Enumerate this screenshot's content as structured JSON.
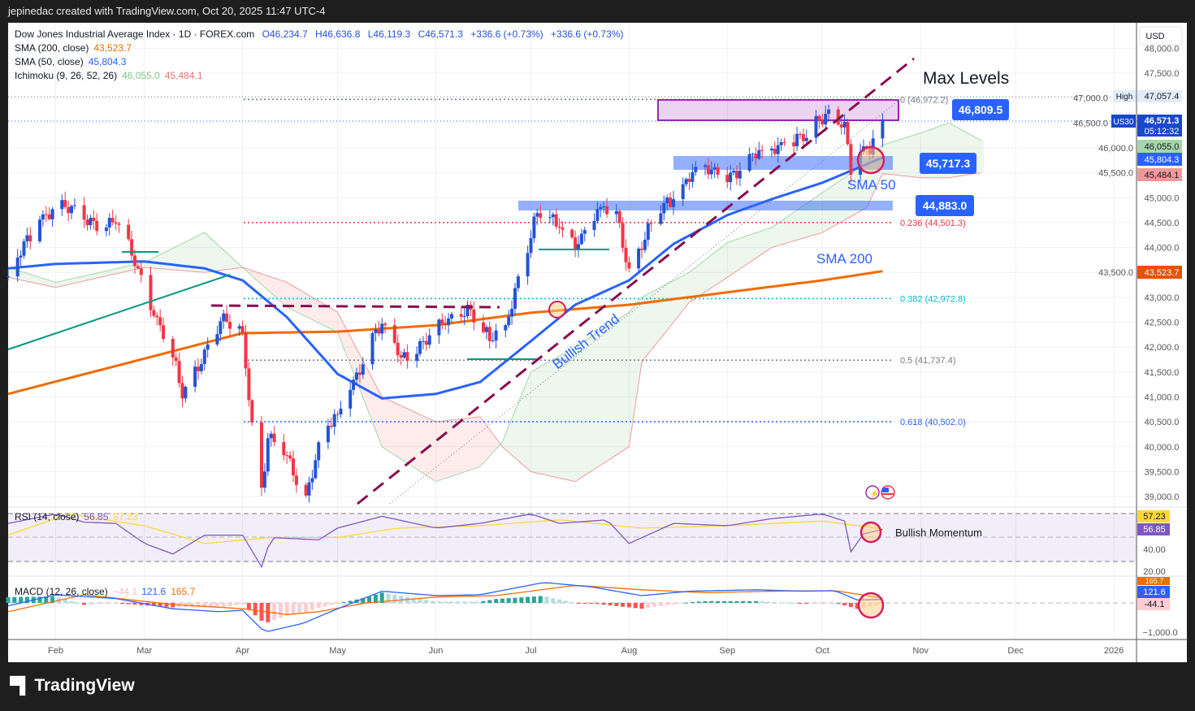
{
  "header": {
    "attribution": "jepinedac created with TradingView.com, Oct 20, 2025 11:47 UTC-4"
  },
  "legend": {
    "symbol": "Dow Jones Industrial Average Index · 1D · FOREX.com",
    "open": "O46,234.7",
    "high": "H46,636.8",
    "low": "L46,119.3",
    "close": "C46,571.3",
    "change": "+336.6 (+0.73%)",
    "change2": "+336.6 (+0.73%)",
    "sma200_label": "SMA (200, close)",
    "sma200_value": "43,523.7",
    "sma50_label": "SMA (50, close)",
    "sma50_value": "45,804.3",
    "ichimoku_label": "Ichimoku (9, 26, 52, 26)",
    "ichimoku_a": "46,055.0",
    "ichimoku_b": "45,484.1"
  },
  "price_axis": {
    "currency": "USD",
    "ticks": [
      "48,000.0",
      "47,500.0",
      "47,000.0",
      "46,500.0",
      "46,000.0",
      "45,500.0",
      "45,000.0",
      "44,500.0",
      "44,000.0",
      "43,500.0",
      "43,000.0",
      "42,500.0",
      "42,000.0",
      "41,500.0",
      "41,000.0",
      "40,500.0",
      "40,000.0",
      "39,500.0",
      "39,000.0"
    ],
    "high_label": "High",
    "high_value": "47,057.4",
    "symbol_tag": "US30",
    "last_price": "46,571.3",
    "countdown": "05:12:32",
    "ichimoku_a_tag": "46,055.0",
    "sma50_tag": "45,804.3",
    "ichimoku_b_tag": "45,484.1",
    "sma200_tag": "43,523.7"
  },
  "rsi_axis": {
    "rsi_ma_tag": "57.23",
    "rsi_tag": "56.85",
    "ticks": [
      "40.00",
      "20.00"
    ]
  },
  "macd_axis": {
    "signal_tag": "165.7",
    "macd_tag": "121.6",
    "hist_tag": "-44.1",
    "ticks": [
      "−1,000.0"
    ]
  },
  "time_axis": {
    "labels": [
      "Feb",
      "Mar",
      "Apr",
      "May",
      "Jun",
      "Jul",
      "Aug",
      "Sep",
      "Oct",
      "Nov",
      "Dec",
      "2026"
    ]
  },
  "rsi_legend": {
    "label": "RSI (14, close)",
    "rsi": "56.85",
    "ma": "57.23"
  },
  "macd_legend": {
    "label": "MACD (12, 26, close)",
    "hist": "−44.1",
    "macd": "121.6",
    "signal": "165.7"
  },
  "annotations": {
    "max_levels": "Max Levels",
    "box_top_price": "46,809.5",
    "zone_1_price": "45,717.3",
    "zone_2_price": "44,883.0",
    "sma50_text": "SMA 50",
    "sma200_text": "SMA 200",
    "trend_text": "Bullish Trend",
    "momentum_text": "Bullish Momentum"
  },
  "fibonacci": [
    {
      "label": "0 (46,972.2)",
      "price": 46972.2,
      "color": "#787b86"
    },
    {
      "label": "0.236 (44,501.3)",
      "price": 44501.3,
      "color": "#f23645"
    },
    {
      "label": "0.382 (42,972.8)",
      "price": 42972.8,
      "color": "#00bcd4"
    },
    {
      "label": "0.5 (41,737.4)",
      "price": 41737.4,
      "color": "#787b86"
    },
    {
      "label": "0.618 (40,502.0)",
      "price": 40502.0,
      "color": "#2962ff"
    }
  ],
  "brand": {
    "name": "TradingView"
  },
  "colors": {
    "up": "#2453d6",
    "down": "#f23645",
    "sma50": "#2962ff",
    "sma200": "#ef6c00",
    "cloud_green": "#a5d6a7",
    "cloud_red": "#ef9a9a",
    "rsi": "#7e57c2",
    "rsi_ma": "#fdd835",
    "annotation": "#880e4f"
  },
  "chart_data": {
    "type": "candlestick",
    "title": "Dow Jones Industrial Average Index · 1D",
    "ylabel": "USD",
    "ylim": [
      38800,
      48200
    ],
    "close_anchors": [
      [
        "2025-01-17",
        43420
      ],
      [
        "2025-01-27",
        44560
      ],
      [
        "2025-02-01",
        44890
      ],
      [
        "2025-02-10",
        44560
      ],
      [
        "2025-02-20",
        44480
      ],
      [
        "2025-02-27",
        43580
      ],
      [
        "2025-03-05",
        42600
      ],
      [
        "2025-03-10",
        41790
      ],
      [
        "2025-03-13",
        40970
      ],
      [
        "2025-03-20",
        41950
      ],
      [
        "2025-03-25",
        42520
      ],
      [
        "2025-04-01",
        42280
      ],
      [
        "2025-04-04",
        40485
      ],
      [
        "2025-04-07",
        39180
      ],
      [
        "2025-04-09",
        40170
      ],
      [
        "2025-04-14",
        39830
      ],
      [
        "2025-04-21",
        39020
      ],
      [
        "2025-04-25",
        40090
      ],
      [
        "2025-05-01",
        40650
      ],
      [
        "2025-05-05",
        41140
      ],
      [
        "2025-05-12",
        42280
      ],
      [
        "2025-05-16",
        42440
      ],
      [
        "2025-05-21",
        41790
      ],
      [
        "2025-05-28",
        42120
      ],
      [
        "2025-06-04",
        42440
      ],
      [
        "2025-06-11",
        42850
      ],
      [
        "2025-06-18",
        42120
      ],
      [
        "2025-06-23",
        42440
      ],
      [
        "2025-06-27",
        43420
      ],
      [
        "2025-07-03",
        44690
      ],
      [
        "2025-07-10",
        44400
      ],
      [
        "2025-07-16",
        44070
      ],
      [
        "2025-07-23",
        44810
      ],
      [
        "2025-07-28",
        44730
      ],
      [
        "2025-08-01",
        43580
      ],
      [
        "2025-08-06",
        44155
      ],
      [
        "2025-08-12",
        44890
      ],
      [
        "2025-08-15",
        44970
      ],
      [
        "2025-08-22",
        45620
      ],
      [
        "2025-08-29",
        45460
      ],
      [
        "2025-09-05",
        45540
      ],
      [
        "2025-09-12",
        45950
      ],
      [
        "2025-09-19",
        46110
      ],
      [
        "2025-09-26",
        46200
      ],
      [
        "2025-10-03",
        46770
      ],
      [
        "2025-10-08",
        46520
      ],
      [
        "2025-10-10",
        45460
      ],
      [
        "2025-10-14",
        46030
      ],
      [
        "2025-10-16",
        45870
      ],
      [
        "2025-10-17",
        46190
      ],
      [
        "2025-10-20",
        46571.3
      ]
    ],
    "sma200": [
      [
        "2025-01-17",
        41060
      ],
      [
        "2025-04-01",
        42280
      ],
      [
        "2025-05-01",
        42310
      ],
      [
        "2025-06-01",
        42440
      ],
      [
        "2025-07-01",
        42690
      ],
      [
        "2025-08-01",
        42850
      ],
      [
        "2025-09-01",
        43100
      ],
      [
        "2025-10-01",
        43340
      ],
      [
        "2025-10-20",
        43523.7
      ]
    ],
    "sma50": [
      [
        "2025-01-17",
        43580
      ],
      [
        "2025-02-01",
        43670
      ],
      [
        "2025-03-01",
        43720
      ],
      [
        "2025-03-20",
        43580
      ],
      [
        "2025-04-01",
        43340
      ],
      [
        "2025-04-15",
        42600
      ],
      [
        "2025-05-01",
        41460
      ],
      [
        "2025-05-15",
        40970
      ],
      [
        "2025-06-01",
        41060
      ],
      [
        "2025-06-15",
        41300
      ],
      [
        "2025-07-01",
        42120
      ],
      [
        "2025-07-15",
        42850
      ],
      [
        "2025-08-01",
        43340
      ],
      [
        "2025-08-15",
        44070
      ],
      [
        "2025-09-01",
        44650
      ],
      [
        "2025-09-15",
        44970
      ],
      [
        "2025-10-01",
        45300
      ],
      [
        "2025-10-20",
        45804.3
      ]
    ],
    "ichimoku_span_a": [
      [
        "2025-01-17",
        43600
      ],
      [
        "2025-02-01",
        43300
      ],
      [
        "2025-03-01",
        43700
      ],
      [
        "2025-03-20",
        44300
      ],
      [
        "2025-04-01",
        43600
      ],
      [
        "2025-04-15",
        42800
      ],
      [
        "2025-05-01",
        42300
      ],
      [
        "2025-05-15",
        40000
      ],
      [
        "2025-06-01",
        39300
      ],
      [
        "2025-06-15",
        39600
      ],
      [
        "2025-06-22",
        40100
      ],
      [
        "2025-07-01",
        41500
      ],
      [
        "2025-07-15",
        42000
      ],
      [
        "2025-08-01",
        42700
      ],
      [
        "2025-08-05",
        43000
      ],
      [
        "2025-08-20",
        43500
      ],
      [
        "2025-09-01",
        44100
      ],
      [
        "2025-09-15",
        44400
      ],
      [
        "2025-10-01",
        45100
      ],
      [
        "2025-10-15",
        45700
      ],
      [
        "2025-10-20",
        46055
      ],
      [
        "2025-11-01",
        46300
      ],
      [
        "2025-11-10",
        46500
      ],
      [
        "2025-11-20",
        46150
      ]
    ],
    "ichimoku_span_b": [
      [
        "2025-01-17",
        43400
      ],
      [
        "2025-02-01",
        43200
      ],
      [
        "2025-03-01",
        43600
      ],
      [
        "2025-03-20",
        43500
      ],
      [
        "2025-04-01",
        43600
      ],
      [
        "2025-04-15",
        43300
      ],
      [
        "2025-05-01",
        42700
      ],
      [
        "2025-05-15",
        41000
      ],
      [
        "2025-06-01",
        40500
      ],
      [
        "2025-06-15",
        40600
      ],
      [
        "2025-06-22",
        40000
      ],
      [
        "2025-07-01",
        39500
      ],
      [
        "2025-07-15",
        39300
      ],
      [
        "2025-08-01",
        40000
      ],
      [
        "2025-08-05",
        41700
      ],
      [
        "2025-08-20",
        42900
      ],
      [
        "2025-09-01",
        43400
      ],
      [
        "2025-09-15",
        44000
      ],
      [
        "2025-10-01",
        44300
      ],
      [
        "2025-10-15",
        44800
      ],
      [
        "2025-10-20",
        45484.1
      ],
      [
        "2025-11-01",
        45400
      ],
      [
        "2025-11-10",
        45400
      ],
      [
        "2025-11-20",
        45500
      ]
    ],
    "rsi": [
      [
        "2025-01-17",
        62
      ],
      [
        "2025-02-01",
        70
      ],
      [
        "2025-02-10",
        63
      ],
      [
        "2025-02-20",
        62
      ],
      [
        "2025-03-01",
        45
      ],
      [
        "2025-03-10",
        36
      ],
      [
        "2025-03-20",
        52
      ],
      [
        "2025-04-01",
        52
      ],
      [
        "2025-04-07",
        25
      ],
      [
        "2025-04-10",
        50
      ],
      [
        "2025-04-25",
        48
      ],
      [
        "2025-05-01",
        58
      ],
      [
        "2025-05-15",
        68
      ],
      [
        "2025-06-01",
        58
      ],
      [
        "2025-06-15",
        62
      ],
      [
        "2025-07-01",
        70
      ],
      [
        "2025-07-10",
        62
      ],
      [
        "2025-07-25",
        65
      ],
      [
        "2025-08-01",
        45
      ],
      [
        "2025-08-15",
        62
      ],
      [
        "2025-09-01",
        60
      ],
      [
        "2025-09-15",
        66
      ],
      [
        "2025-10-01",
        70
      ],
      [
        "2025-10-08",
        64
      ],
      [
        "2025-10-10",
        38
      ],
      [
        "2025-10-14",
        53
      ],
      [
        "2025-10-20",
        56.85
      ]
    ],
    "rsi_ma": [
      [
        "2025-01-17",
        52
      ],
      [
        "2025-02-05",
        70
      ],
      [
        "2025-03-01",
        60
      ],
      [
        "2025-03-20",
        45
      ],
      [
        "2025-04-10",
        50
      ],
      [
        "2025-05-01",
        50
      ],
      [
        "2025-05-20",
        58
      ],
      [
        "2025-06-15",
        60
      ],
      [
        "2025-07-10",
        65
      ],
      [
        "2025-08-05",
        58
      ],
      [
        "2025-09-01",
        60
      ],
      [
        "2025-10-01",
        64
      ],
      [
        "2025-10-20",
        57.23
      ]
    ],
    "macd": [
      [
        "2025-01-17",
        -100
      ],
      [
        "2025-02-01",
        280
      ],
      [
        "2025-02-20",
        150
      ],
      [
        "2025-03-10",
        -200
      ],
      [
        "2025-03-25",
        -300
      ],
      [
        "2025-04-01",
        -250
      ],
      [
        "2025-04-08",
        -1000
      ],
      [
        "2025-04-20",
        -700
      ],
      [
        "2025-05-01",
        -200
      ],
      [
        "2025-05-15",
        400
      ],
      [
        "2025-06-01",
        250
      ],
      [
        "2025-06-15",
        280
      ],
      [
        "2025-07-05",
        700
      ],
      [
        "2025-07-20",
        550
      ],
      [
        "2025-08-05",
        250
      ],
      [
        "2025-08-20",
        400
      ],
      [
        "2025-09-10",
        450
      ],
      [
        "2025-09-25",
        400
      ],
      [
        "2025-10-05",
        420
      ],
      [
        "2025-10-12",
        100
      ],
      [
        "2025-10-20",
        121.6
      ]
    ],
    "macd_signal": [
      [
        "2025-01-17",
        -300
      ],
      [
        "2025-02-10",
        280
      ],
      [
        "2025-03-10",
        -50
      ],
      [
        "2025-04-01",
        -200
      ],
      [
        "2025-04-15",
        -400
      ],
      [
        "2025-04-25",
        -300
      ],
      [
        "2025-05-10",
        0
      ],
      [
        "2025-06-01",
        200
      ],
      [
        "2025-06-20",
        250
      ],
      [
        "2025-07-15",
        600
      ],
      [
        "2025-08-05",
        450
      ],
      [
        "2025-08-25",
        350
      ],
      [
        "2025-09-15",
        400
      ],
      [
        "2025-10-05",
        420
      ],
      [
        "2025-10-20",
        165.7
      ]
    ]
  }
}
